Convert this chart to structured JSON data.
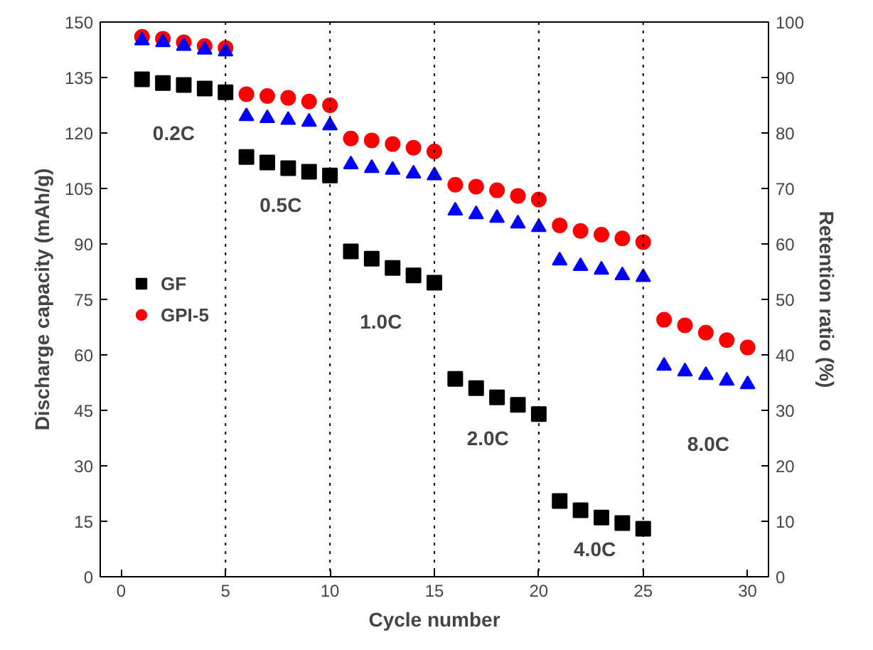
{
  "chart_data": {
    "type": "scatter",
    "xlabel": "Cycle number",
    "ylabel": "Discharge capacity (mAh/g)",
    "y2label": "Retention ratio (%)",
    "xlim": [
      -1,
      31
    ],
    "xticks": [
      0,
      5,
      10,
      15,
      20,
      25,
      30
    ],
    "ylim": [
      0,
      150
    ],
    "yticks": [
      0,
      15,
      30,
      45,
      60,
      75,
      90,
      105,
      120,
      135,
      150
    ],
    "y2lim": [
      0,
      100
    ],
    "y2ticks": [
      0,
      10,
      20,
      30,
      40,
      50,
      60,
      70,
      80,
      90,
      100
    ],
    "grid": false,
    "legend": "left",
    "x": [
      1,
      2,
      3,
      4,
      5,
      6,
      7,
      8,
      9,
      10,
      11,
      12,
      13,
      14,
      15,
      16,
      17,
      18,
      19,
      20,
      21,
      22,
      23,
      24,
      25,
      26,
      27,
      28,
      29,
      30
    ],
    "series": [
      {
        "name": "GF",
        "color": "#000000",
        "marker": "square",
        "values": [
          134.5,
          133.5,
          133,
          132,
          131,
          113.5,
          112,
          110.5,
          109.5,
          108.5,
          88,
          86,
          83.5,
          81.5,
          79.5,
          53.5,
          51,
          48.5,
          46.5,
          44,
          20.5,
          18,
          16,
          14.5,
          13,
          null,
          null,
          null,
          null,
          null
        ]
      },
      {
        "name": "GPI-5",
        "color": "#ff0000",
        "marker": "circle",
        "values": [
          146,
          145.5,
          144.5,
          143.5,
          143,
          130.5,
          130,
          129.5,
          128.5,
          127.5,
          118.5,
          118,
          117,
          116,
          115,
          106,
          105.5,
          104.5,
          103,
          102,
          95,
          93.5,
          92.5,
          91.5,
          90.5,
          69.5,
          68,
          66,
          64,
          62
        ]
      },
      {
        "color": "#0000ff",
        "marker": "triangle",
        "values": [
          145,
          144.5,
          143.5,
          142.5,
          142,
          124.5,
          124,
          123.5,
          123,
          122,
          111.5,
          110.5,
          110,
          109,
          108.5,
          99,
          98,
          97,
          95.5,
          94.5,
          85.5,
          84,
          83,
          81.5,
          81,
          57,
          55.5,
          54.5,
          53,
          52
        ]
      }
    ],
    "ref_lines": [
      {
        "axis": "x",
        "value": 5,
        "line_style": "dotted",
        "color": "#000000"
      },
      {
        "axis": "x",
        "value": 10,
        "line_style": "dotted",
        "color": "#000000"
      },
      {
        "axis": "x",
        "value": 15,
        "line_style": "dotted",
        "color": "#000000"
      },
      {
        "axis": "x",
        "value": 20,
        "line_style": "dotted",
        "color": "#000000"
      },
      {
        "axis": "x",
        "value": 25,
        "line_style": "dotted",
        "color": "#000000"
      }
    ],
    "annotations": [
      "0.2C",
      "0.5C",
      "1.0C",
      "2.0C",
      "4.0C",
      "8.0C"
    ]
  }
}
